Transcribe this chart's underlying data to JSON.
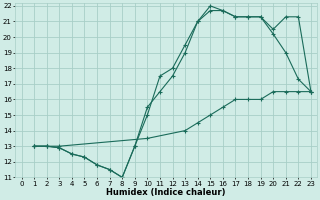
{
  "xlabel": "Humidex (Indice chaleur)",
  "xlim": [
    -0.5,
    23.5
  ],
  "ylim": [
    11,
    22.2
  ],
  "xticks": [
    0,
    1,
    2,
    3,
    4,
    5,
    6,
    7,
    8,
    9,
    10,
    11,
    12,
    13,
    14,
    15,
    16,
    17,
    18,
    19,
    20,
    21,
    22,
    23
  ],
  "yticks": [
    11,
    12,
    13,
    14,
    15,
    16,
    17,
    18,
    19,
    20,
    21,
    22
  ],
  "bg_color": "#d0ece6",
  "grid_color": "#a8cfc7",
  "line_color": "#1a6b5a",
  "curve1_x": [
    1,
    2,
    3,
    4,
    5,
    6,
    7,
    8,
    9,
    10,
    11,
    12,
    13,
    14,
    15,
    16,
    17,
    18,
    19,
    20,
    21,
    22,
    23
  ],
  "curve1_y": [
    13,
    13,
    12.9,
    12.5,
    12.3,
    11.8,
    11.5,
    11.0,
    13.0,
    15.0,
    17.5,
    18.0,
    19.5,
    21.0,
    21.7,
    21.7,
    21.3,
    21.3,
    21.3,
    20.2,
    19.0,
    17.3,
    16.5
  ],
  "curve2_x": [
    1,
    2,
    3,
    4,
    5,
    6,
    7,
    8,
    9,
    10,
    11,
    12,
    13,
    14,
    15,
    16,
    17,
    18,
    19,
    20,
    21,
    22,
    23
  ],
  "curve2_y": [
    13,
    13,
    12.9,
    12.5,
    12.3,
    11.8,
    11.5,
    11.0,
    13.0,
    15.5,
    16.5,
    17.5,
    19.0,
    21.0,
    22.0,
    21.7,
    21.3,
    21.3,
    21.3,
    20.5,
    21.3,
    21.3,
    16.5
  ],
  "curve3_x": [
    1,
    2,
    3,
    10,
    13,
    14,
    15,
    16,
    17,
    18,
    19,
    20,
    21,
    22,
    23
  ],
  "curve3_y": [
    13,
    13,
    13,
    13.5,
    14.0,
    14.5,
    15.0,
    15.5,
    16.0,
    16.0,
    16.0,
    16.5,
    16.5,
    16.5,
    16.5
  ]
}
